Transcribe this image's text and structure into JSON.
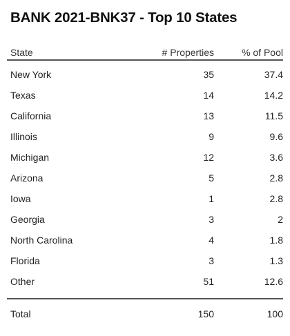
{
  "chart_data": {
    "type": "table",
    "title": "BANK 2021-BNK37 - Top 10 States",
    "columns": [
      "State",
      "# Properties",
      "% of Pool"
    ],
    "rows": [
      {
        "state": "New York",
        "properties": "35",
        "pool": "37.4"
      },
      {
        "state": "Texas",
        "properties": "14",
        "pool": "14.2"
      },
      {
        "state": "California",
        "properties": "13",
        "pool": "11.5"
      },
      {
        "state": "Illinois",
        "properties": "9",
        "pool": "9.6"
      },
      {
        "state": "Michigan",
        "properties": "12",
        "pool": "3.6"
      },
      {
        "state": "Arizona",
        "properties": "5",
        "pool": "2.8"
      },
      {
        "state": "Iowa",
        "properties": "1",
        "pool": "2.8"
      },
      {
        "state": "Georgia",
        "properties": "3",
        "pool": "2"
      },
      {
        "state": "North Carolina",
        "properties": "4",
        "pool": "1.8"
      },
      {
        "state": "Florida",
        "properties": "3",
        "pool": "1.3"
      },
      {
        "state": "Other",
        "properties": "51",
        "pool": "12.6"
      }
    ],
    "total": {
      "label": "Total",
      "properties": "150",
      "pool": "100"
    }
  }
}
